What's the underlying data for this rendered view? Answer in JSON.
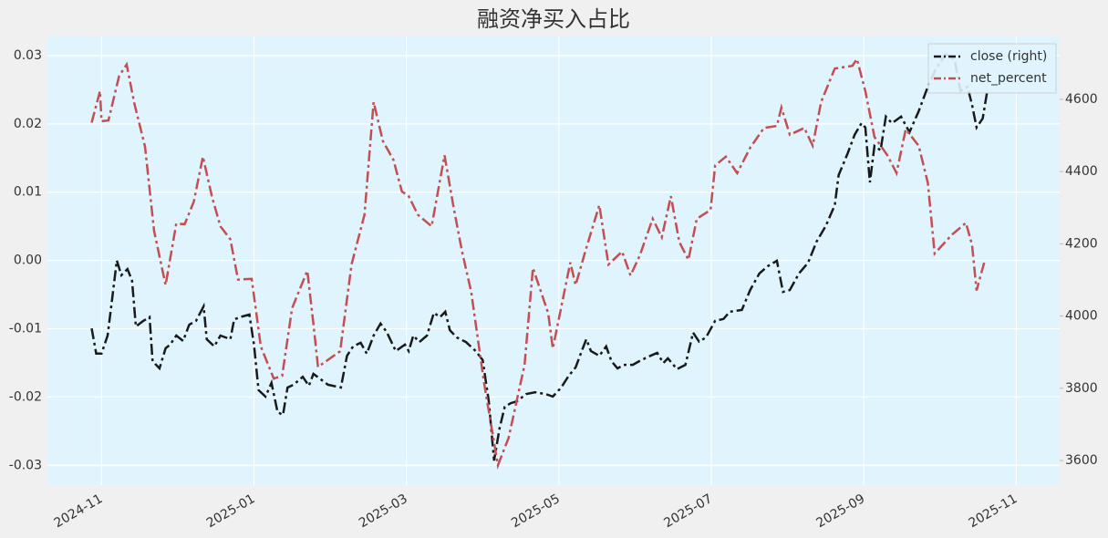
{
  "chart_data": {
    "type": "line",
    "title": "融资净买入占比",
    "xlim": [
      -0.71,
      12.57
    ],
    "xticks": [
      {
        "value": 0,
        "label": "2024-11"
      },
      {
        "value": 2,
        "label": "2025-01"
      },
      {
        "value": 4,
        "label": "2025-03"
      },
      {
        "value": 6,
        "label": "2025-05"
      },
      {
        "value": 8,
        "label": "2025-07"
      },
      {
        "value": 10,
        "label": "2025-09"
      },
      {
        "value": 12,
        "label": "2025-11"
      }
    ],
    "ylim": [
      -0.0329,
      0.0328
    ],
    "yticks": [
      -0.03,
      -0.02,
      -0.01,
      {
        "value": 0,
        "label": "0.00"
      },
      0.01,
      0.02,
      0.03
    ],
    "y2lim": [
      3532,
      4774
    ],
    "y2ticks": [
      3600,
      3800,
      4000,
      4200,
      4400,
      4600
    ],
    "grid": true,
    "legend": "upper right",
    "series": [
      {
        "name": "close (right)",
        "color": "#1a1a1a",
        "axis": "y2",
        "x": [
          -0.13,
          -0.07,
          0.0,
          0.08,
          0.14,
          0.2,
          0.26,
          0.34,
          0.4,
          0.45,
          0.55,
          0.63,
          0.67,
          0.76,
          0.84,
          0.9,
          0.98,
          1.07,
          1.15,
          1.24,
          1.34,
          1.38,
          1.48,
          1.56,
          1.69,
          1.74,
          1.85,
          1.94,
          2.0,
          2.06,
          2.15,
          2.23,
          2.31,
          2.38,
          2.44,
          2.52,
          2.64,
          2.72,
          2.78,
          2.97,
          3.14,
          3.22,
          3.3,
          3.4,
          3.48,
          3.57,
          3.66,
          3.74,
          3.86,
          3.98,
          4.03,
          4.09,
          4.17,
          4.27,
          4.36,
          4.44,
          4.51,
          4.57,
          4.66,
          4.78,
          4.91,
          5.0,
          5.08,
          5.15,
          5.22,
          5.29,
          5.37,
          5.45,
          5.57,
          5.69,
          5.83,
          5.92,
          6.03,
          6.13,
          6.22,
          6.3,
          6.36,
          6.42,
          6.53,
          6.62,
          6.69,
          6.77,
          6.85,
          6.97,
          7.08,
          7.2,
          7.29,
          7.37,
          7.43,
          7.55,
          7.66,
          7.76,
          7.84,
          7.93,
          8.05,
          8.16,
          8.24,
          8.4,
          8.51,
          8.63,
          8.74,
          8.86,
          8.94,
          9.03,
          9.15,
          9.27,
          9.38,
          9.5,
          9.62,
          9.67,
          9.79,
          9.88,
          9.97,
          10.02,
          10.08,
          10.14,
          10.22,
          10.29,
          10.37,
          10.49,
          10.6,
          10.72,
          10.84,
          10.95,
          11.07,
          11.19,
          11.27,
          11.36,
          11.42,
          11.48,
          11.56,
          11.62
        ],
        "values": [
          3966,
          3896,
          3896,
          3946,
          4048,
          4154,
          4113,
          4130,
          4098,
          3971,
          3987,
          3997,
          3875,
          3855,
          3911,
          3921,
          3946,
          3931,
          3976,
          3987,
          4027,
          3936,
          3916,
          3946,
          3936,
          3991,
          3999,
          4004,
          3921,
          3795,
          3777,
          3815,
          3734,
          3726,
          3802,
          3810,
          3832,
          3807,
          3840,
          3810,
          3802,
          3890,
          3916,
          3926,
          3896,
          3946,
          3979,
          3956,
          3903,
          3921,
          3903,
          3946,
          3928,
          3946,
          4009,
          3997,
          4012,
          3961,
          3941,
          3928,
          3903,
          3878,
          3764,
          3600,
          3688,
          3749,
          3759,
          3764,
          3784,
          3789,
          3784,
          3777,
          3802,
          3835,
          3858,
          3903,
          3936,
          3903,
          3890,
          3916,
          3875,
          3855,
          3865,
          3865,
          3878,
          3890,
          3898,
          3870,
          3883,
          3853,
          3865,
          3954,
          3929,
          3941,
          3987,
          3992,
          4012,
          4017,
          4072,
          4118,
          4138,
          4153,
          4067,
          4072,
          4118,
          4148,
          4206,
          4249,
          4307,
          4390,
          4451,
          4502,
          4534,
          4522,
          4370,
          4471,
          4459,
          4552,
          4534,
          4552,
          4509,
          4567,
          4635,
          4686,
          4724,
          4711,
          4623,
          4635,
          4585,
          4522,
          4547,
          4623
        ]
      },
      {
        "name": "net_percent",
        "color": "#c44e52",
        "x": [
          -0.13,
          -0.02,
          0.0,
          0.09,
          0.23,
          0.33,
          0.43,
          0.57,
          0.69,
          0.84,
          0.98,
          1.09,
          1.21,
          1.33,
          1.45,
          1.56,
          1.69,
          1.79,
          1.97,
          2.09,
          2.26,
          2.37,
          2.5,
          2.7,
          2.78,
          2.84,
          3.13,
          3.28,
          3.45,
          3.57,
          3.69,
          3.83,
          3.94,
          4.03,
          4.15,
          4.33,
          4.5,
          4.62,
          4.73,
          4.85,
          5.02,
          5.2,
          5.34,
          5.55,
          5.66,
          5.86,
          5.92,
          6.15,
          6.22,
          6.36,
          6.53,
          6.65,
          6.83,
          6.94,
          7.06,
          7.23,
          7.35,
          7.47,
          7.58,
          7.7,
          7.81,
          7.99,
          8.05,
          8.19,
          8.34,
          8.51,
          8.69,
          8.86,
          8.92,
          9.03,
          9.22,
          9.33,
          9.44,
          9.62,
          9.85,
          9.91,
          10.02,
          10.14,
          10.31,
          10.43,
          10.55,
          10.72,
          10.84,
          10.93,
          11.15,
          11.34,
          11.42,
          11.48,
          11.59
        ],
        "values": [
          0.0202,
          0.0248,
          0.0204,
          0.0205,
          0.027,
          0.0287,
          0.023,
          0.0167,
          0.0043,
          -0.0036,
          0.0054,
          0.0053,
          0.0086,
          0.0152,
          0.0093,
          0.005,
          0.0031,
          -0.0028,
          -0.0027,
          -0.0126,
          -0.0173,
          -0.0169,
          -0.007,
          -0.0015,
          -0.0093,
          -0.0156,
          -0.0133,
          -0.0006,
          0.0067,
          0.0232,
          0.0175,
          0.0147,
          0.0101,
          0.0094,
          0.0067,
          0.005,
          0.0154,
          0.0077,
          0.0013,
          -0.0046,
          -0.018,
          -0.03,
          -0.026,
          -0.0153,
          -0.0011,
          -0.0077,
          -0.0129,
          -0.0003,
          -0.0036,
          0.0018,
          0.0081,
          -0.0006,
          0.0013,
          -0.0022,
          0.0007,
          0.0061,
          0.0034,
          0.0094,
          0.0027,
          0.0001,
          0.0061,
          0.0074,
          0.0139,
          0.0152,
          0.0128,
          0.0165,
          0.0194,
          0.0197,
          0.0224,
          0.0184,
          0.0194,
          0.0168,
          0.0232,
          0.0281,
          0.0285,
          0.0295,
          0.0248,
          0.0181,
          0.0154,
          0.0128,
          0.0192,
          0.0168,
          0.0114,
          0.001,
          0.0037,
          0.0055,
          0.0023,
          -0.0044,
          0.0001
        ]
      }
    ]
  }
}
